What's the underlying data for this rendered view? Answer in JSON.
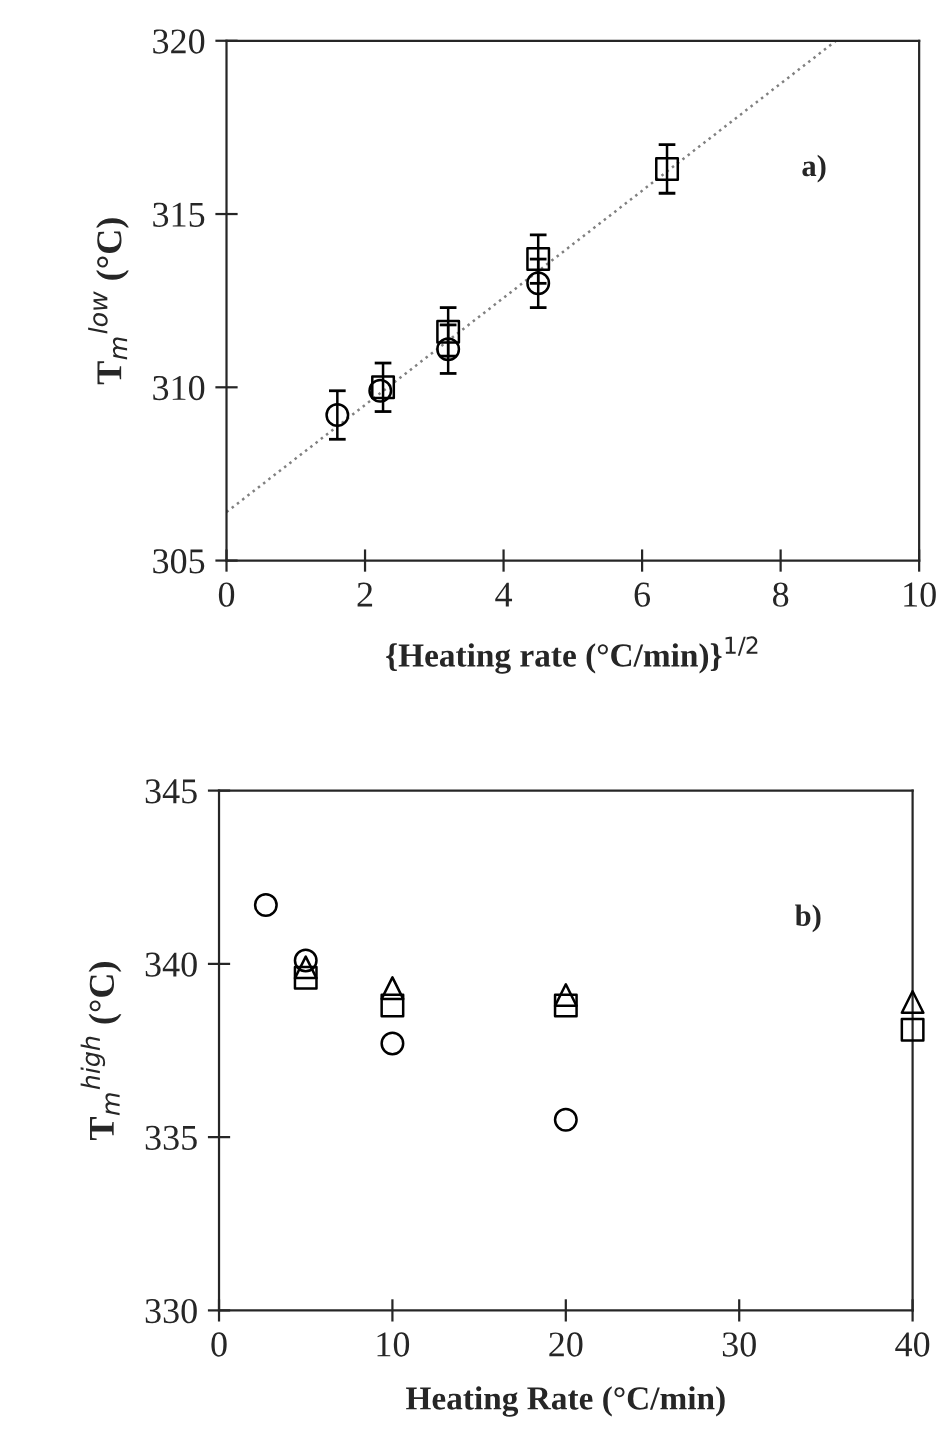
{
  "chart_data": [
    {
      "type": "scatter",
      "xlabel": "{Heating rate (°C/min)}$^{1/2}$",
      "ylabel": "T$_{m}$$^{low}$ (°C)",
      "annotations": [
        "a)"
      ],
      "xlim": [
        0,
        10
      ],
      "ylim": [
        305,
        320
      ],
      "xticks": [
        0,
        2,
        4,
        6,
        8,
        10
      ],
      "yticks": [
        305,
        310,
        315,
        320
      ],
      "grid": false,
      "legend": false,
      "series": [
        {
          "marker": "circle",
          "color": "#000000",
          "x": [
            1.6,
            2.22,
            3.2,
            4.5
          ],
          "values": [
            309.2,
            309.9,
            311.1,
            313.0
          ],
          "errors": [
            0.7,
            null,
            0.7,
            0.7
          ]
        },
        {
          "marker": "square",
          "color": "#000000",
          "x": [
            2.26,
            3.2,
            4.5,
            6.36
          ],
          "values": [
            310.0,
            311.6,
            313.7,
            316.3
          ],
          "errors": [
            0.7,
            0.7,
            0.7,
            0.7
          ]
        },
        {
          "type": "line",
          "marker": "none",
          "line_style": "dotted",
          "color": "#808080",
          "x": [
            0,
            8.8
          ],
          "values": [
            306.4,
            320.0
          ]
        }
      ]
    },
    {
      "type": "scatter",
      "xlabel": "Heating Rate (°C/min)",
      "ylabel": "T$_{m}$$^{high}$ (°C)",
      "annotations": [
        "b)"
      ],
      "xlim": [
        0,
        40
      ],
      "ylim": [
        330,
        345
      ],
      "xticks": [
        0,
        10,
        20,
        30,
        40
      ],
      "yticks": [
        330,
        335,
        340,
        345
      ],
      "grid": false,
      "legend": false,
      "series": [
        {
          "marker": "circle",
          "color": "#000000",
          "x": [
            2.7,
            5,
            10,
            20
          ],
          "values": [
            341.7,
            340.1,
            337.7,
            335.5
          ]
        },
        {
          "marker": "triangle",
          "color": "#000000",
          "x": [
            5,
            10,
            20,
            40
          ],
          "values": [
            339.9,
            339.3,
            339.1,
            338.9
          ]
        },
        {
          "marker": "square",
          "color": "#000000",
          "x": [
            5,
            10,
            20,
            40
          ],
          "values": [
            339.6,
            338.8,
            338.8,
            338.1
          ]
        }
      ]
    }
  ]
}
